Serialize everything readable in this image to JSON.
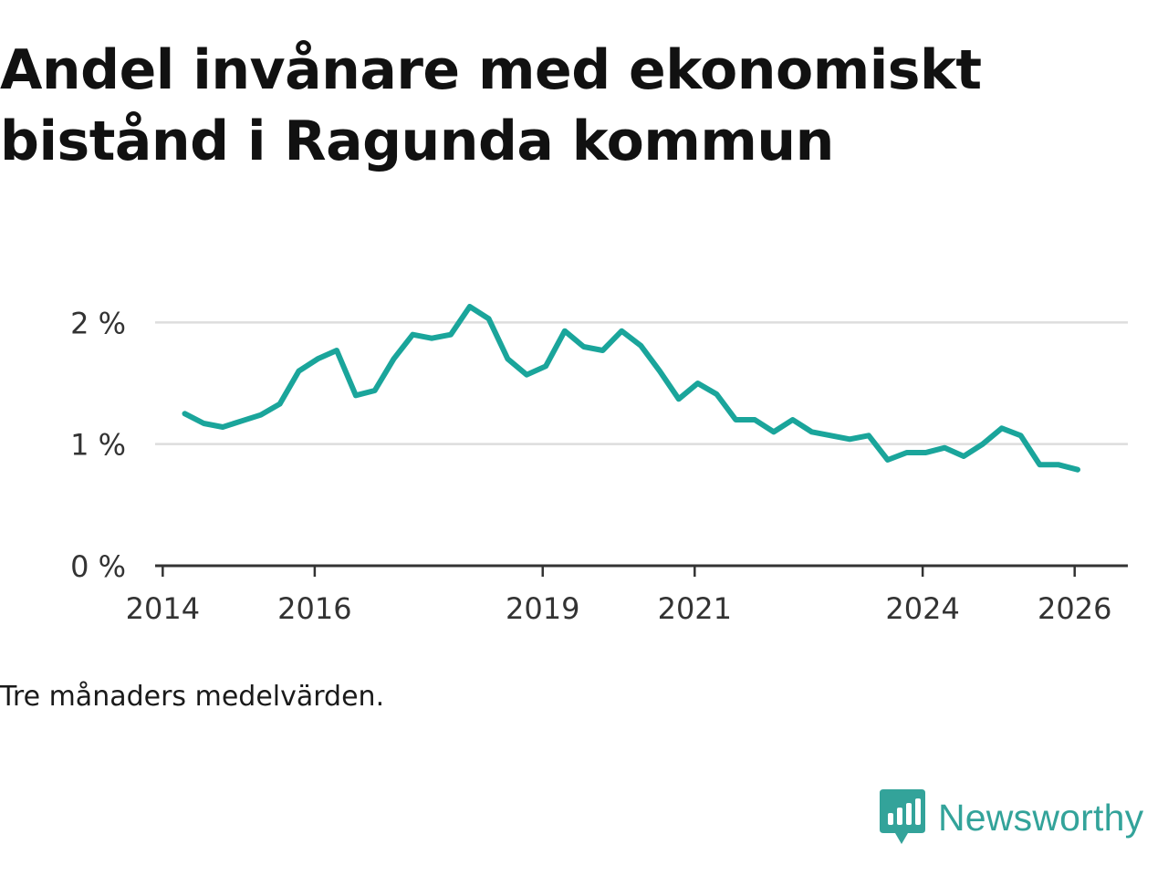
{
  "title": "Andel invånare med ekonomiskt bistånd i Ragunda kommun",
  "note": "Tre månaders medelvärden.",
  "brand": {
    "name": "Newsworthy",
    "icon": "newsworthy-logo-icon",
    "color": "#33a39a"
  },
  "colors": {
    "line": "#1aa59b",
    "grid": "#dddddd",
    "axis": "#333333"
  },
  "chart_data": {
    "type": "line",
    "title": "Andel invånare med ekonomiskt bistånd i Ragunda kommun",
    "xlabel": "",
    "ylabel": "",
    "ylim": [
      0,
      2.4
    ],
    "xlim": [
      2013.9,
      2026.7
    ],
    "grid": true,
    "yticks": [
      {
        "value": 0,
        "label": "0 %"
      },
      {
        "value": 1,
        "label": "1 %"
      },
      {
        "value": 2,
        "label": "2 %"
      }
    ],
    "xticks": [
      {
        "value": 2014,
        "label": "2014"
      },
      {
        "value": 2016,
        "label": "2016"
      },
      {
        "value": 2019,
        "label": "2019"
      },
      {
        "value": 2021,
        "label": "2021"
      },
      {
        "value": 2024,
        "label": "2024"
      },
      {
        "value": 2026,
        "label": "2026"
      }
    ],
    "series": [
      {
        "name": "Andel invånare med ekonomiskt bistånd",
        "x": [
          2014.29,
          2014.54,
          2014.79,
          2015.04,
          2015.29,
          2015.54,
          2015.79,
          2016.04,
          2016.29,
          2016.54,
          2016.79,
          2017.04,
          2017.29,
          2017.54,
          2017.79,
          2018.04,
          2018.29,
          2018.54,
          2018.79,
          2019.04,
          2019.29,
          2019.54,
          2019.79,
          2020.04,
          2020.29,
          2020.54,
          2020.79,
          2021.04,
          2021.29,
          2021.54,
          2021.79,
          2022.04,
          2022.29,
          2022.54,
          2022.79,
          2023.04,
          2023.29,
          2023.54,
          2023.79,
          2024.04,
          2024.29,
          2024.54,
          2024.79,
          2025.04,
          2025.29,
          2025.54,
          2025.79,
          2026.04
        ],
        "values": [
          1.25,
          1.17,
          1.14,
          1.19,
          1.24,
          1.33,
          1.6,
          1.7,
          1.77,
          1.4,
          1.44,
          1.7,
          1.9,
          1.87,
          1.9,
          2.13,
          2.03,
          1.7,
          1.57,
          1.64,
          1.93,
          1.8,
          1.77,
          1.93,
          1.81,
          1.6,
          1.37,
          1.5,
          1.41,
          1.2,
          1.2,
          1.1,
          1.2,
          1.1,
          1.07,
          1.04,
          1.07,
          0.87,
          0.93,
          0.93,
          0.97,
          0.9,
          1.0,
          1.13,
          1.07,
          0.83,
          0.83,
          0.79
        ]
      }
    ]
  }
}
